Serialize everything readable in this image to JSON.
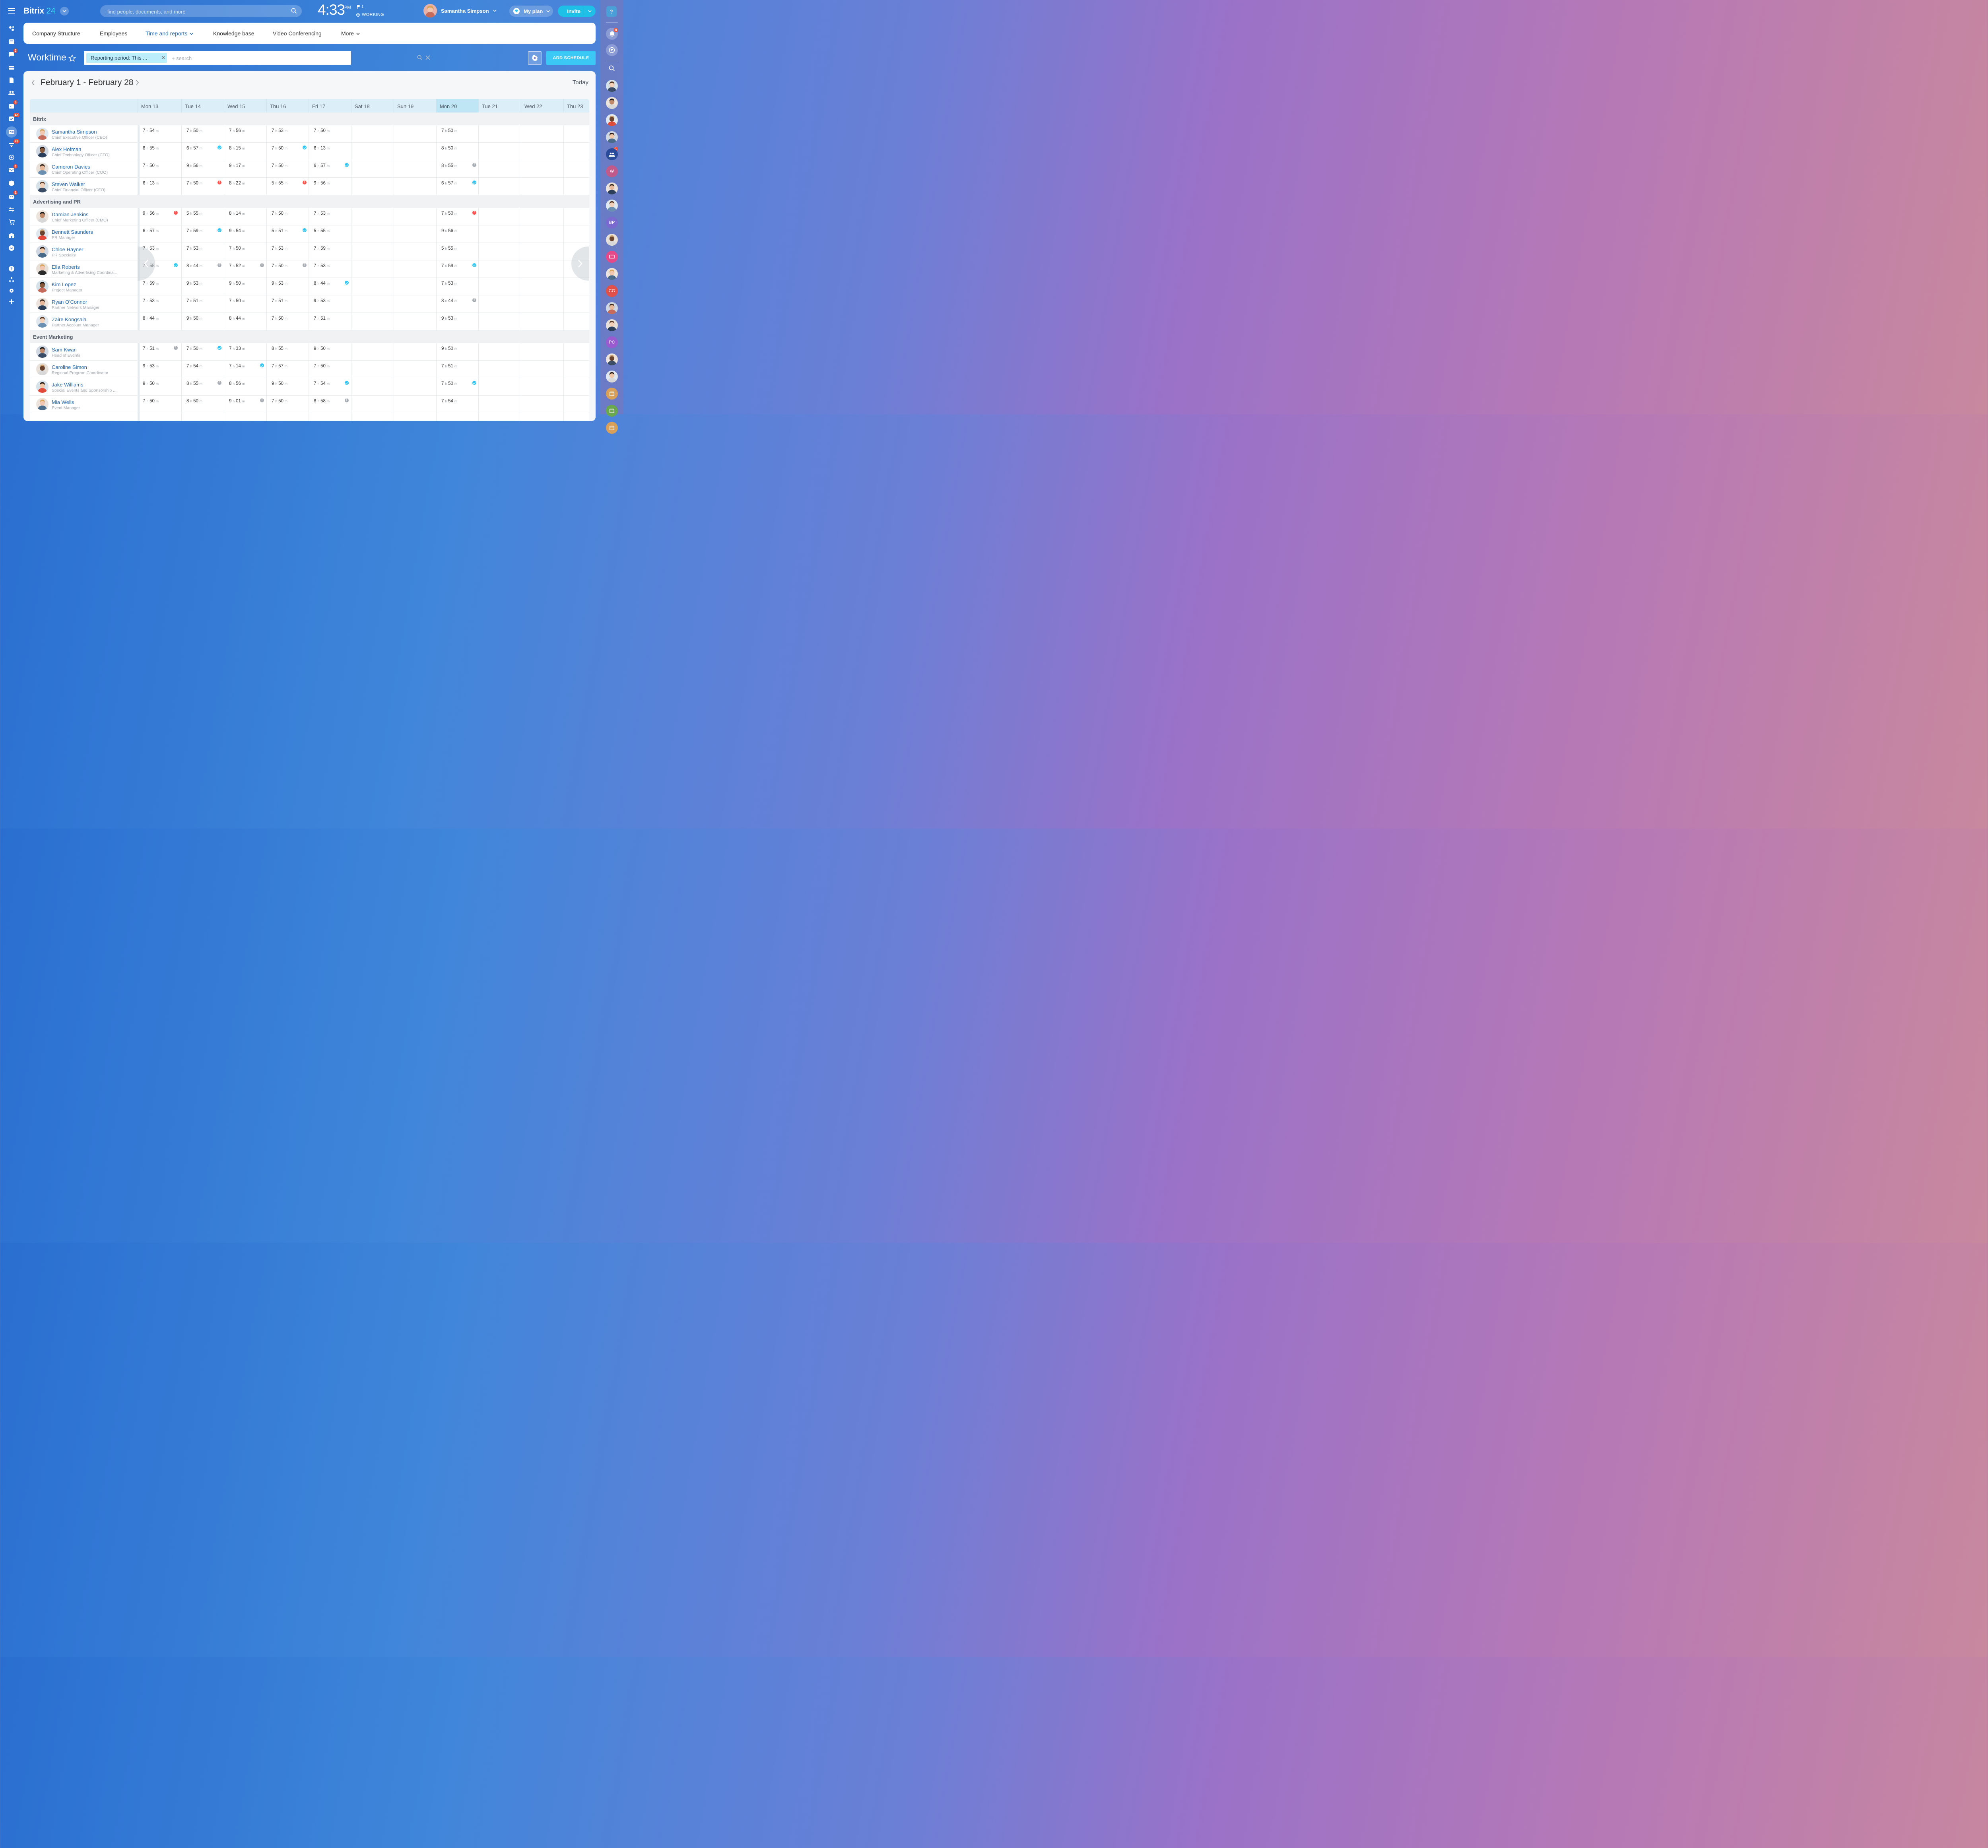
{
  "app": {
    "logo_text": "Bitrix",
    "logo_num": "24"
  },
  "search": {
    "placeholder": "find people, documents, and more"
  },
  "clock": {
    "time": "4:33",
    "ampm": "PM",
    "flag_count": "1",
    "status": "WORKING"
  },
  "user": {
    "name": "Samantha Simpson"
  },
  "plan": {
    "label": "My plan"
  },
  "invite": {
    "label": "Invite"
  },
  "help": {
    "label": "?"
  },
  "left_sidebar": {
    "badges": {
      "chat": "3",
      "calendar": "3",
      "tasks": "48",
      "feed": "23",
      "mail": "1",
      "bot": "1"
    }
  },
  "tabs": [
    "Company Structure",
    "Employees",
    "Time and reports",
    "Knowledge base",
    "Video Conferencing",
    "More"
  ],
  "page": {
    "title": "Worktime",
    "filter_chip": "Reporting period: This ...",
    "filter_placeholder": "+ search",
    "add_button": "ADD SCHEDULE"
  },
  "period": {
    "label": "February 1 - February 28",
    "today": "Today"
  },
  "days": [
    "Mon 13",
    "Tue 14",
    "Wed 15",
    "Thu 16",
    "Fri 17",
    "Sat 18",
    "Sun 19",
    "Mon 20",
    "Tue 21",
    "Wed 22",
    "Thu 23"
  ],
  "today_index": 7,
  "groups": [
    {
      "name": "Bitrix",
      "employees": [
        {
          "name": "Samantha Simpson",
          "position": "Chief Executive Officer (CEO)",
          "cells": [
            [
              "7",
              "54",
              ""
            ],
            [
              "7",
              "50",
              ""
            ],
            [
              "7",
              "56",
              ""
            ],
            [
              "7",
              "53",
              ""
            ],
            [
              "7",
              "50",
              ""
            ],
            null,
            null,
            [
              "7",
              "50",
              ""
            ]
          ]
        },
        {
          "name": "Alex Hofman",
          "position": "Chief Technology Officer (CTO)",
          "cells": [
            [
              "8",
              "55",
              ""
            ],
            [
              "6",
              "57",
              "ok"
            ],
            [
              "8",
              "15",
              ""
            ],
            [
              "7",
              "50",
              "ok"
            ],
            [
              "6",
              "13",
              ""
            ],
            null,
            null,
            [
              "8",
              "50",
              ""
            ]
          ]
        },
        {
          "name": "Cameron Davies",
          "position": "Chief Operating Officer (COO)",
          "cells": [
            [
              "7",
              "50",
              ""
            ],
            [
              "9",
              "56",
              ""
            ],
            [
              "9",
              "17",
              ""
            ],
            [
              "7",
              "50",
              ""
            ],
            [
              "6",
              "57",
              "ok"
            ],
            null,
            null,
            [
              "8",
              "55",
              "warn"
            ]
          ]
        },
        {
          "name": "Steven Walker",
          "position": "Chief Financial Officer (CFO)",
          "cells": [
            [
              "6",
              "13",
              ""
            ],
            [
              "7",
              "50",
              "err"
            ],
            [
              "8",
              "22",
              ""
            ],
            [
              "5",
              "55",
              "err"
            ],
            [
              "9",
              "56",
              ""
            ],
            null,
            null,
            [
              "6",
              "57",
              "ok"
            ]
          ]
        }
      ]
    },
    {
      "name": "Advertising and PR",
      "employees": [
        {
          "name": "Damian Jenkins",
          "position": "Chief Marketing Officer (CMO)",
          "cells": [
            [
              "9",
              "56",
              "err"
            ],
            [
              "5",
              "55",
              ""
            ],
            [
              "8",
              "14",
              ""
            ],
            [
              "7",
              "50",
              ""
            ],
            [
              "7",
              "53",
              ""
            ],
            null,
            null,
            [
              "7",
              "50",
              "err"
            ]
          ]
        },
        {
          "name": "Bennett Saunders",
          "position": "PR Manager",
          "cells": [
            [
              "6",
              "57",
              ""
            ],
            [
              "7",
              "59",
              "ok"
            ],
            [
              "9",
              "54",
              ""
            ],
            [
              "5",
              "51",
              "ok"
            ],
            [
              "5",
              "55",
              ""
            ],
            null,
            null,
            [
              "9",
              "56",
              ""
            ]
          ]
        },
        {
          "name": "Chloe Rayner",
          "position": "PR Specialist",
          "cells": [
            [
              "7",
              "53",
              ""
            ],
            [
              "7",
              "53",
              ""
            ],
            [
              "7",
              "50",
              ""
            ],
            [
              "7",
              "53",
              ""
            ],
            [
              "7",
              "59",
              ""
            ],
            null,
            null,
            [
              "5",
              "55",
              ""
            ]
          ]
        },
        {
          "name": "Ella Roberts",
          "position": "Marketing & Advertising Coordina...",
          "cells": [
            [
              "7",
              "55",
              "ok"
            ],
            [
              "8",
              "44",
              "warn"
            ],
            [
              "7",
              "52",
              "warn"
            ],
            [
              "7",
              "50",
              "warn"
            ],
            [
              "7",
              "53",
              ""
            ],
            null,
            null,
            [
              "7",
              "59",
              "ok"
            ]
          ]
        },
        {
          "name": "Kim Lopez",
          "position": "Project Manager",
          "cells": [
            [
              "7",
              "59",
              ""
            ],
            [
              "9",
              "53",
              ""
            ],
            [
              "9",
              "50",
              ""
            ],
            [
              "9",
              "53",
              ""
            ],
            [
              "8",
              "44",
              "ok"
            ],
            null,
            null,
            [
              "7",
              "53",
              ""
            ]
          ]
        },
        {
          "name": "Ryan O'Connor",
          "position": "Partner Network Manager",
          "cells": [
            [
              "7",
              "53",
              ""
            ],
            [
              "7",
              "51",
              ""
            ],
            [
              "7",
              "50",
              ""
            ],
            [
              "7",
              "51",
              ""
            ],
            [
              "9",
              "53",
              ""
            ],
            null,
            null,
            [
              "8",
              "44",
              "warn"
            ]
          ]
        },
        {
          "name": "Zaire Kongsala",
          "position": "Partner Account Manager",
          "cells": [
            [
              "8",
              "44",
              ""
            ],
            [
              "9",
              "50",
              ""
            ],
            [
              "8",
              "44",
              ""
            ],
            [
              "7",
              "50",
              ""
            ],
            [
              "7",
              "51",
              ""
            ],
            null,
            null,
            [
              "9",
              "53",
              ""
            ]
          ]
        }
      ]
    },
    {
      "name": "Event Marketing",
      "employees": [
        {
          "name": "Sam Kwan",
          "position": "Head of Events",
          "cells": [
            [
              "7",
              "51",
              "warn"
            ],
            [
              "7",
              "50",
              "ok"
            ],
            [
              "7",
              "33",
              ""
            ],
            [
              "8",
              "55",
              ""
            ],
            [
              "9",
              "50",
              ""
            ],
            null,
            null,
            [
              "9",
              "50",
              ""
            ]
          ]
        },
        {
          "name": "Caroline Simon",
          "position": "Regional Program Coordinator",
          "cells": [
            [
              "9",
              "53",
              ""
            ],
            [
              "7",
              "54",
              ""
            ],
            [
              "7",
              "14",
              "ok"
            ],
            [
              "7",
              "57",
              ""
            ],
            [
              "7",
              "50",
              ""
            ],
            null,
            null,
            [
              "7",
              "51",
              ""
            ]
          ]
        },
        {
          "name": "Jake Williams",
          "position": "Special Events and Sponsorship ...",
          "cells": [
            [
              "9",
              "50",
              ""
            ],
            [
              "8",
              "55",
              "warn"
            ],
            [
              "8",
              "56",
              ""
            ],
            [
              "9",
              "50",
              ""
            ],
            [
              "7",
              "54",
              "ok"
            ],
            null,
            null,
            [
              "7",
              "50",
              "ok"
            ]
          ]
        },
        {
          "name": "Mia Wells",
          "position": "Event Manager",
          "cells": [
            [
              "7",
              "50",
              ""
            ],
            [
              "8",
              "50",
              ""
            ],
            [
              "9",
              "01",
              "warn"
            ],
            [
              "7",
              "50",
              ""
            ],
            [
              "8",
              "58",
              "warn"
            ],
            null,
            null,
            [
              "7",
              "54",
              ""
            ]
          ]
        }
      ]
    }
  ],
  "units": {
    "h": "h",
    "m": "m"
  },
  "right_sidebar": {
    "notif_badge": "8",
    "group_badge": "1",
    "initials": [
      "W",
      "BP",
      "CG",
      "PC"
    ]
  },
  "colors": {
    "accent": "#2067b0",
    "button": "#3bc8f5",
    "ok": "#2fc6f6",
    "err": "#ff5752"
  }
}
